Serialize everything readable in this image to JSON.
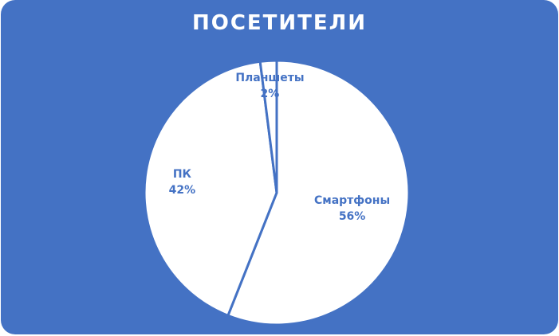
{
  "colors": {
    "background": "#4472c4",
    "slice_fill": "#ffffff",
    "slice_border": "#4472c4",
    "label_color": "#4472c4",
    "title_color": "#ffffff"
  },
  "chart_data": {
    "type": "pie",
    "title": "ПОСЕТИТЕЛИ",
    "slices": [
      {
        "label": "Смартфоны",
        "value": 56,
        "value_label": "56%"
      },
      {
        "label": "ПК",
        "value": 42,
        "value_label": "42%"
      },
      {
        "label": "Планшеты",
        "value": 2,
        "value_label": "2%"
      }
    ],
    "start_angle_deg": 0,
    "direction": "clockwise",
    "legend": "none"
  }
}
